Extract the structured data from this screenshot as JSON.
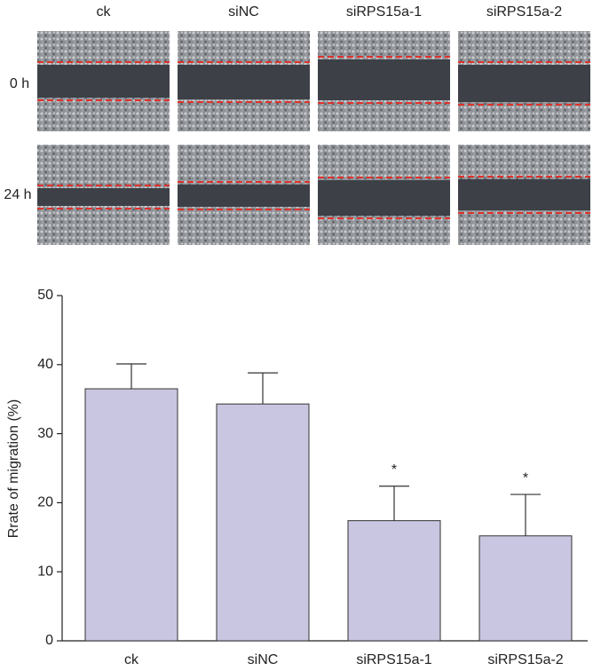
{
  "panel_labels": {
    "columns": [
      "ck",
      "siNC",
      "siRPS15a-1",
      "siRPS15a-2"
    ],
    "rows": [
      "0 h",
      "24 h"
    ]
  },
  "chart_data": {
    "type": "bar",
    "categories": [
      "ck",
      "siNC",
      "siRPS15a-1",
      "siRPS15a-2"
    ],
    "values": [
      36.5,
      34.3,
      17.4,
      15.2
    ],
    "errors": [
      3.6,
      4.5,
      5.0,
      6.0
    ],
    "significance": [
      null,
      null,
      "*",
      "*"
    ],
    "color": "#c8c6e0",
    "ylabel": "Rrate of migration (%)",
    "ylim": [
      0,
      50
    ],
    "yticks": [
      0,
      10,
      20,
      30,
      40,
      50
    ]
  }
}
